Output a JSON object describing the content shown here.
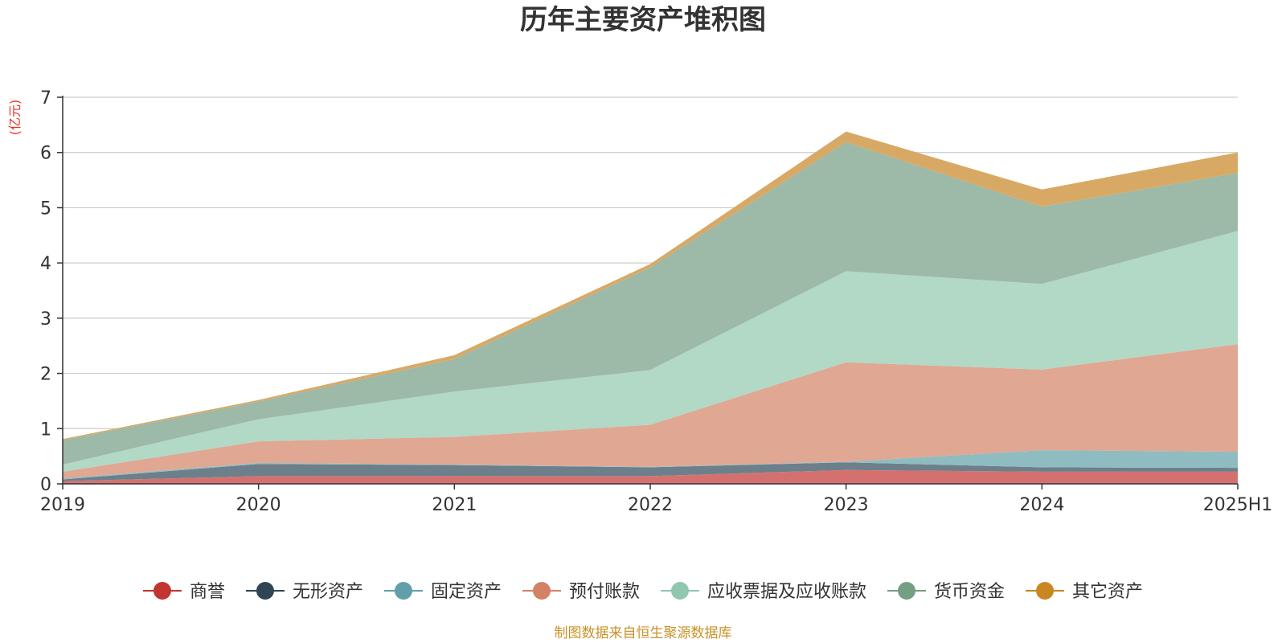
{
  "chart_data": {
    "type": "area",
    "stacked": true,
    "title": "历年主要资产堆积图",
    "unit_label": "(亿元)",
    "categories": [
      "2019",
      "2020",
      "2021",
      "2022",
      "2023",
      "2024",
      "2025H1"
    ],
    "ylim": [
      0,
      7
    ],
    "yticks": [
      0,
      1,
      2,
      3,
      4,
      5,
      6,
      7
    ],
    "grid": true,
    "legend_position": "bottom",
    "series": [
      {
        "name": "商誉",
        "color": "#c23531",
        "area_color": "#d4716f",
        "values": [
          0.05,
          0.14,
          0.14,
          0.14,
          0.25,
          0.22,
          0.22
        ]
      },
      {
        "name": "无形资产",
        "color": "#2f4554",
        "area_color": "#6d7f8b",
        "values": [
          0.03,
          0.22,
          0.2,
          0.16,
          0.14,
          0.08,
          0.07
        ]
      },
      {
        "name": "固定资产",
        "color": "#61a0a8",
        "area_color": "#8fbcc1",
        "values": [
          0.02,
          0.02,
          0.01,
          0.01,
          0.01,
          0.31,
          0.29
        ]
      },
      {
        "name": "预付账款",
        "color": "#d48265",
        "area_color": "#e0a793",
        "values": [
          0.12,
          0.39,
          0.5,
          0.76,
          1.8,
          1.46,
          1.95
        ]
      },
      {
        "name": "应收票据及应收账款",
        "color": "#91c7ae",
        "area_color": "#b2d8c6",
        "values": [
          0.13,
          0.4,
          0.82,
          0.99,
          1.65,
          1.55,
          2.05
        ]
      },
      {
        "name": "货币资金",
        "color": "#749f83",
        "area_color": "#9db9a7",
        "values": [
          0.44,
          0.32,
          0.59,
          1.86,
          2.34,
          1.4,
          1.05
        ]
      },
      {
        "name": "其它资产",
        "color": "#ca8622",
        "area_color": "#d8a965",
        "values": [
          0.02,
          0.03,
          0.07,
          0.06,
          0.19,
          0.31,
          0.37
        ]
      }
    ]
  },
  "source_note": "制图数据来自恒生聚源数据库"
}
